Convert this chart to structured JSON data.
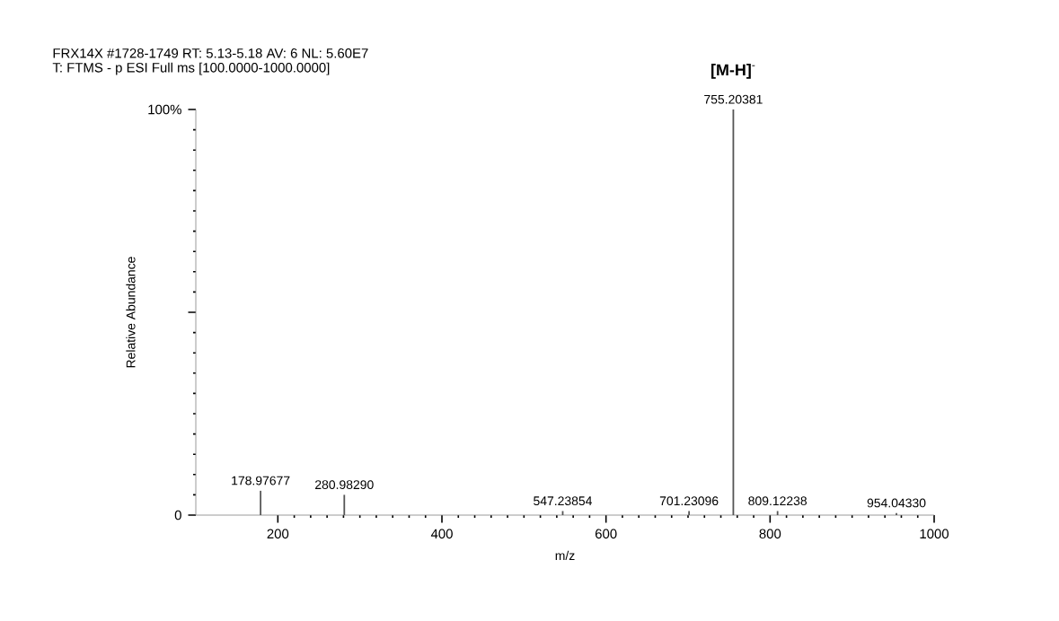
{
  "chart_data": {
    "type": "bar",
    "title": "FRX14X #1728-1749   RT: 5.13-5.18   AV: 6   NL: 5.60E7",
    "subtitle": "T: FTMS - p ESI Full ms [100.0000-1000.0000]",
    "xlabel": "m/z",
    "ylabel": "Relative Abundance",
    "x": [
      178.97677,
      280.9829,
      547.23854,
      701.23096,
      755.20381,
      809.12238,
      954.0433
    ],
    "series": [
      {
        "color": "#555555",
        "values": [
          6,
          5,
          1,
          1,
          100,
          1,
          0.5
        ]
      }
    ],
    "annotations": [
      {
        "text": "178.97677",
        "x": 178.97677,
        "y": 6
      },
      {
        "text": "280.98290",
        "x": 280.9829,
        "y": 5
      },
      {
        "text": "547.23854",
        "x": 547.23854,
        "y": 1
      },
      {
        "text": "701.23096",
        "x": 701.23096,
        "y": 1
      },
      {
        "text": "755.20381",
        "x": 755.20381,
        "y": 100
      },
      {
        "text": "809.12238",
        "x": 809.12238,
        "y": 1
      },
      {
        "text": "954.04330",
        "x": 954.0433,
        "y": 0.5
      },
      {
        "text": "**[M-H]**$^{-}$",
        "x": 755.20381,
        "y": 100
      }
    ],
    "xlim": [
      100,
      1000
    ],
    "ylim": [
      0,
      100
    ],
    "xticks": [
      200,
      400,
      600,
      800,
      1000
    ],
    "yticks": [
      0,
      {
        "value": 50,
        "label": null
      },
      {
        "value": 100,
        "label": "100%"
      }
    ],
    "grid": false
  }
}
